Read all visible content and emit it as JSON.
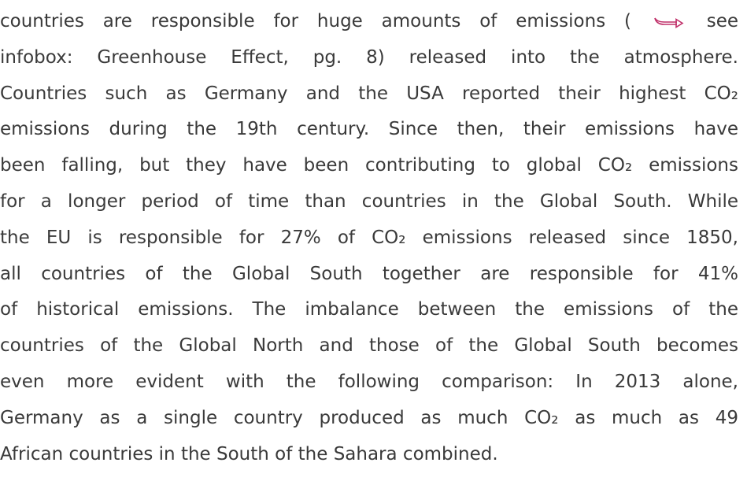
{
  "paragraph": {
    "first_line": [
      "countries are responsible for huge amounts of emissions (",
      "see"
    ],
    "lines": [
      "infobox: Greenhouse Effect, pg. 8) released into the atmosphere.",
      "Countries such as Germany and the USA reported their highest CO₂",
      "emissions during the 19th century. Since then, their emissions have",
      "been falling, but they have been contributing to global CO₂ emissions",
      "for a longer period of time than countries in the Global South. While",
      "the EU is responsible for 27% of CO₂ emissions released since 1850,",
      "all countries of the Global South together are responsible for 41%",
      "of historical emissions. The imbalance between the emissions of the",
      "countries of the Global North and those of the Global South becomes",
      "even more evident with the following comparison: In 2013 alone,",
      "Germany as a single country produced as much CO₂ as  much as 49",
      "African countries in the South of the Sahara combined."
    ]
  }
}
